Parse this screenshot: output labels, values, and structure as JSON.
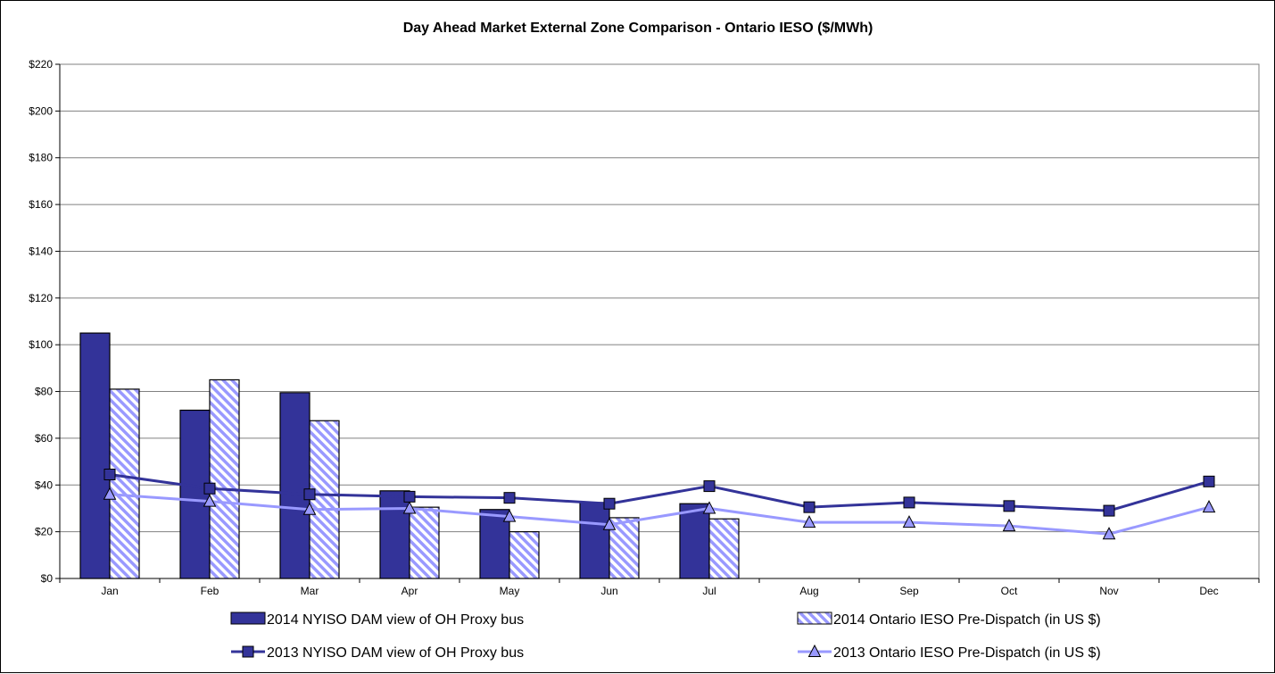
{
  "chart_data": {
    "type": "bar",
    "title": "Day Ahead Market External Zone Comparison - Ontario IESO ($/MWh)",
    "xlabel": "",
    "ylabel": "",
    "ylim": [
      0,
      220
    ],
    "y_ticks": [
      0,
      20,
      40,
      60,
      80,
      100,
      120,
      140,
      160,
      180,
      200,
      220
    ],
    "y_tick_labels": [
      "$0",
      "$20",
      "$40",
      "$60",
      "$80",
      "$100",
      "$120",
      "$140",
      "$160",
      "$180",
      "$200",
      "$220"
    ],
    "grid": true,
    "legend_position": "bottom",
    "categories": [
      "Jan",
      "Feb",
      "Mar",
      "Apr",
      "May",
      "Jun",
      "Jul",
      "Aug",
      "Sep",
      "Oct",
      "Nov",
      "Dec"
    ],
    "series": [
      {
        "name": "2014 NYISO DAM view of OH Proxy bus",
        "kind": "bar",
        "style": "solid",
        "color": "#333399",
        "values": [
          105,
          72,
          79.5,
          37.5,
          29.5,
          32.5,
          32,
          null,
          null,
          null,
          null,
          null
        ]
      },
      {
        "name": "2014 Ontario IESO Pre-Dispatch (in US $)",
        "kind": "bar",
        "style": "hatched",
        "color": "#9999ff",
        "values": [
          81,
          85,
          67.5,
          30.5,
          20,
          26,
          25.5,
          null,
          null,
          null,
          null,
          null
        ]
      },
      {
        "name": "2013 NYISO DAM view of OH Proxy bus",
        "kind": "line",
        "marker": "square",
        "color": "#333399",
        "values": [
          44.5,
          38.5,
          36,
          35,
          34.5,
          32,
          39.5,
          30.5,
          32.5,
          31,
          29,
          41.5
        ]
      },
      {
        "name": "2013 Ontario IESO Pre-Dispatch (in US $)",
        "kind": "line",
        "marker": "triangle",
        "color": "#9999ff",
        "values": [
          36,
          33,
          29.5,
          30,
          26.5,
          23,
          30,
          24,
          24,
          22.5,
          19,
          30.5
        ]
      }
    ]
  }
}
